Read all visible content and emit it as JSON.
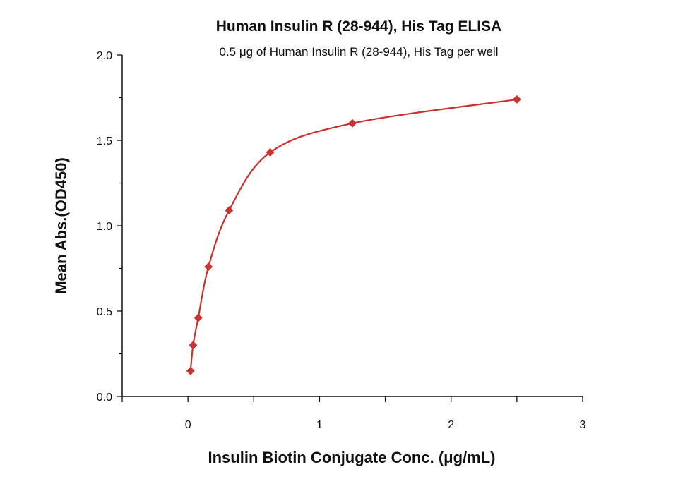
{
  "chart_data": {
    "type": "scatter",
    "title": "Human Insulin R (28-944), His Tag ELISA",
    "subtitle": "0.5 μg of Human Insulin R (28-944), His Tag per well",
    "xlabel": "Insulin Biotin Conjugate Conc. (μg/mL)",
    "ylabel": "Mean Abs.(OD450)",
    "xlim": [
      -0.5,
      3
    ],
    "ylim": [
      0,
      2.0
    ],
    "xticks": [
      "0",
      "1",
      "2",
      "3"
    ],
    "xtick_values": [
      0,
      1,
      2,
      3
    ],
    "yticks": [
      "0.0",
      "0.5",
      "1.0",
      "1.5",
      "2.0"
    ],
    "ytick_values": [
      0,
      0.5,
      1.0,
      1.5,
      2.0
    ],
    "grid": false,
    "marker": "diamond",
    "fit_line": "smooth curve",
    "color": "#c8312f",
    "x": [
      0.0195,
      0.039,
      0.078,
      0.156,
      0.3125,
      0.625,
      1.25,
      2.5
    ],
    "y": [
      0.15,
      0.3,
      0.46,
      0.76,
      1.09,
      1.43,
      1.6,
      1.74
    ]
  }
}
